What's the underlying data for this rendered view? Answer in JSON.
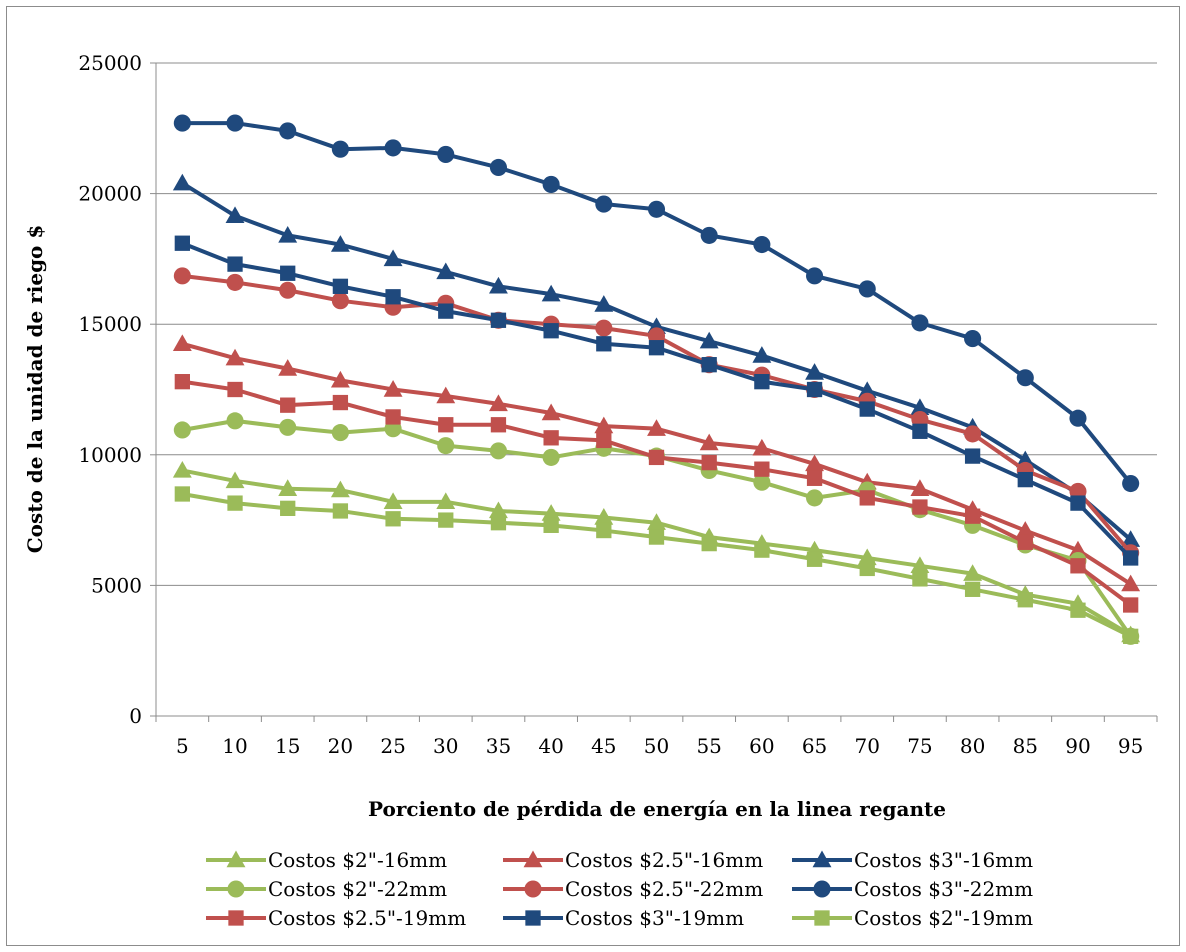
{
  "chart_data": {
    "type": "line",
    "title": "",
    "xlabel": "Porciento de pérdida de energía en la linea regante",
    "ylabel": "Costo de la unidad de riego $",
    "ylim": [
      0,
      25000
    ],
    "yticks": [
      0,
      5000,
      10000,
      15000,
      20000,
      25000
    ],
    "grid": true,
    "legend_position": "bottom",
    "x": [
      "5",
      "10",
      "15",
      "20",
      "25",
      "30",
      "35",
      "40",
      "45",
      "50",
      "55",
      "60",
      "65",
      "70",
      "75",
      "80",
      "85",
      "90",
      "95"
    ],
    "series": [
      {
        "name": "Costos $2\"-16mm",
        "color": "#9bbb59",
        "marker": "triangle",
        "values": [
          9400,
          9000,
          8700,
          8650,
          8200,
          8200,
          7850,
          7750,
          7600,
          7400,
          6850,
          6600,
          6350,
          6050,
          5750,
          5450,
          4650,
          4300,
          3100
        ]
      },
      {
        "name": "Costos $2.5\"-16mm",
        "color": "#c0504d",
        "marker": "triangle",
        "values": [
          14250,
          13700,
          13300,
          12850,
          12500,
          12250,
          11950,
          11600,
          11100,
          11000,
          10450,
          10250,
          9650,
          8950,
          8700,
          7900,
          7100,
          6350,
          5050
        ]
      },
      {
        "name": "Costos $3\"-16mm",
        "color": "#1f497d",
        "marker": "triangle",
        "values": [
          20400,
          19150,
          18400,
          18050,
          17500,
          17000,
          16450,
          16150,
          15750,
          14900,
          14350,
          13800,
          13150,
          12450,
          11800,
          11050,
          9800,
          8500,
          6750
        ]
      },
      {
        "name": "Costos $2\"-22mm",
        "color": "#9bbb59",
        "marker": "circle",
        "values": [
          10950,
          11300,
          11050,
          10850,
          11000,
          10350,
          10150,
          9900,
          10250,
          9950,
          9400,
          8950,
          8350,
          8650,
          7900,
          7300,
          6550,
          5950,
          3050
        ]
      },
      {
        "name": "Costos $2.5\"-22mm",
        "color": "#c0504d",
        "marker": "circle",
        "values": [
          16850,
          16600,
          16300,
          15900,
          15650,
          15800,
          15150,
          15000,
          14850,
          14550,
          13450,
          13050,
          12500,
          12050,
          11350,
          10800,
          9400,
          8600,
          6250
        ]
      },
      {
        "name": "Costos $3\"-22mm",
        "color": "#1f497d",
        "marker": "circle",
        "values": [
          22700,
          22700,
          22400,
          21700,
          21750,
          21500,
          21000,
          20350,
          19600,
          19400,
          18400,
          18050,
          16850,
          16350,
          15050,
          14450,
          12950,
          11400,
          8900
        ]
      },
      {
        "name": "Costos $2.5\"-19mm",
        "color": "#c0504d",
        "marker": "square",
        "values": [
          12800,
          12500,
          11900,
          12000,
          11450,
          11150,
          11150,
          10650,
          10550,
          9900,
          9700,
          9450,
          9100,
          8350,
          8000,
          7650,
          6650,
          5750,
          4250
        ]
      },
      {
        "name": "Costos $3\"-19mm",
        "color": "#1f497d",
        "marker": "square",
        "values": [
          18100,
          17300,
          16950,
          16450,
          16050,
          15500,
          15150,
          14750,
          14250,
          14100,
          13450,
          12800,
          12500,
          11750,
          10900,
          9950,
          9050,
          8150,
          6050
        ]
      },
      {
        "name": "Costos $2\"-19mm",
        "color": "#9bbb59",
        "marker": "square",
        "values": [
          8500,
          8150,
          7950,
          7850,
          7550,
          7500,
          7400,
          7300,
          7100,
          6850,
          6600,
          6350,
          6000,
          5650,
          5250,
          4850,
          4450,
          4050,
          3050
        ]
      }
    ]
  }
}
